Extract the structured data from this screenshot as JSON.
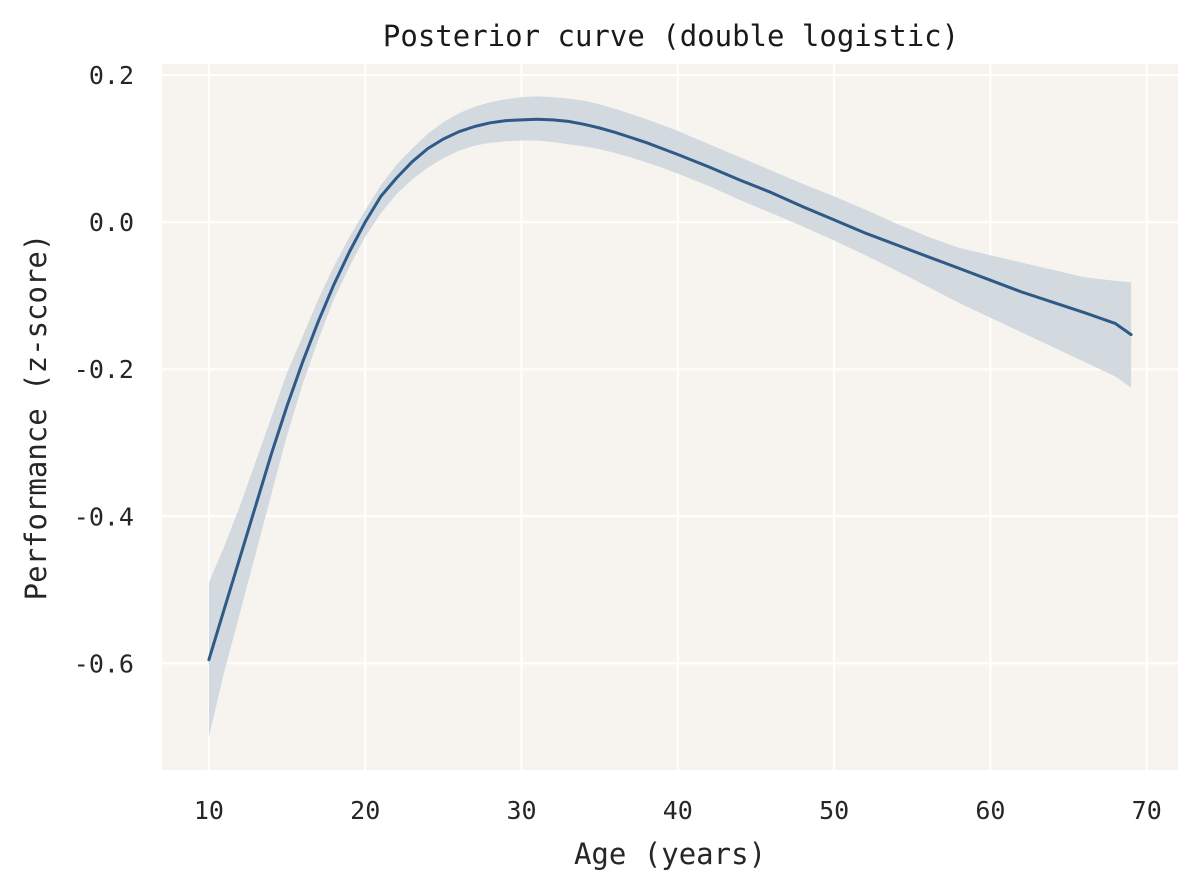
{
  "chart_data": {
    "type": "line",
    "title": "Posterior curve (double logistic)",
    "xlabel": "Age (years)",
    "ylabel": "Performance (z-score)",
    "xlim": [
      7,
      72
    ],
    "ylim": [
      -0.745,
      0.215
    ],
    "xticks": [
      10,
      20,
      30,
      40,
      50,
      60,
      70
    ],
    "yticks": [
      0.2,
      0.0,
      -0.2,
      -0.4,
      -0.6
    ],
    "ytick_labels": [
      "0.2",
      "0.0",
      "-0.2",
      "-0.4",
      "-0.6"
    ],
    "grid": true,
    "legend": "none",
    "colors": {
      "background": "#f7f4ef",
      "line": "#2f5a87",
      "band": "#cbd3dc",
      "grid": "#ffffff"
    },
    "series": [
      {
        "x": [
          10,
          11,
          12,
          13,
          14,
          15,
          16,
          17,
          18,
          19,
          20,
          21,
          22,
          23,
          24,
          25,
          26,
          27,
          28,
          29,
          30,
          31,
          32,
          33,
          34,
          35,
          36,
          37,
          38,
          39,
          40,
          42,
          44,
          46,
          48,
          50,
          52,
          54,
          56,
          58,
          60,
          62,
          64,
          66,
          68,
          69
        ],
        "y": [
          -0.595,
          -0.525,
          -0.455,
          -0.385,
          -0.315,
          -0.25,
          -0.19,
          -0.135,
          -0.085,
          -0.04,
          0.0,
          0.035,
          0.06,
          0.082,
          0.1,
          0.113,
          0.123,
          0.13,
          0.135,
          0.138,
          0.139,
          0.14,
          0.139,
          0.137,
          0.133,
          0.128,
          0.122,
          0.115,
          0.108,
          0.1,
          0.092,
          0.075,
          0.057,
          0.04,
          0.021,
          0.003,
          -0.015,
          -0.031,
          -0.047,
          -0.063,
          -0.079,
          -0.095,
          -0.109,
          -0.123,
          -0.138,
          -0.153
        ],
        "lower": [
          -0.7,
          -0.61,
          -0.53,
          -0.45,
          -0.37,
          -0.29,
          -0.22,
          -0.16,
          -0.105,
          -0.06,
          -0.02,
          0.012,
          0.038,
          0.058,
          0.074,
          0.087,
          0.097,
          0.104,
          0.108,
          0.11,
          0.111,
          0.111,
          0.109,
          0.106,
          0.103,
          0.099,
          0.094,
          0.088,
          0.081,
          0.074,
          0.066,
          0.049,
          0.03,
          0.012,
          -0.006,
          -0.025,
          -0.045,
          -0.066,
          -0.088,
          -0.11,
          -0.13,
          -0.15,
          -0.17,
          -0.19,
          -0.21,
          -0.225
        ],
        "upper": [
          -0.49,
          -0.44,
          -0.385,
          -0.325,
          -0.265,
          -0.205,
          -0.155,
          -0.105,
          -0.06,
          -0.02,
          0.016,
          0.05,
          0.078,
          0.1,
          0.12,
          0.136,
          0.148,
          0.157,
          0.163,
          0.167,
          0.17,
          0.171,
          0.17,
          0.168,
          0.165,
          0.16,
          0.154,
          0.147,
          0.14,
          0.132,
          0.124,
          0.106,
          0.088,
          0.07,
          0.052,
          0.035,
          0.017,
          -0.002,
          -0.02,
          -0.035,
          -0.045,
          -0.055,
          -0.065,
          -0.075,
          -0.08,
          -0.082
        ]
      }
    ]
  }
}
